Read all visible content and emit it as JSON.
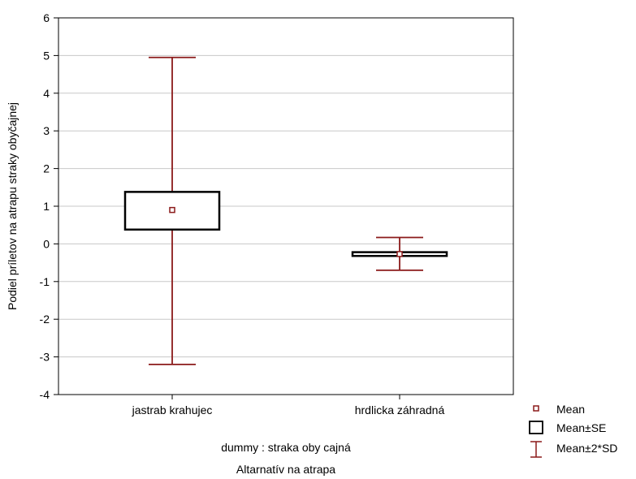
{
  "chart_data": {
    "type": "box",
    "title": "",
    "xlabel": "Altarnatív na atrapa",
    "ylabel": "Podiel príletov na atrapu straky obyčajnej",
    "subtitle": "dummy : straka oby cajná",
    "ylim": [
      -4,
      6
    ],
    "yticks": [
      -4,
      -3,
      -2,
      -1,
      0,
      1,
      2,
      3,
      4,
      5,
      6
    ],
    "categories": [
      "jastrab krahujec",
      "hrdlicka záhradná"
    ],
    "series": [
      {
        "mean": 0.9,
        "se_low": 0.38,
        "se_high": 1.38,
        "sd2_low": -3.2,
        "sd2_high": 4.95
      },
      {
        "mean": -0.27,
        "se_low": -0.32,
        "se_high": -0.22,
        "sd2_low": -0.7,
        "sd2_high": 0.17
      }
    ],
    "grid": true,
    "legend": {
      "position": "bottom-right",
      "items": [
        {
          "symbol": "mean",
          "label": "Mean"
        },
        {
          "symbol": "box",
          "label": "Mean±SE"
        },
        {
          "symbol": "whisker",
          "label": "Mean±2*SD"
        }
      ]
    },
    "colors": {
      "mark": "#8b1a1a",
      "box": "#000000",
      "grid": "#c8c8c8",
      "axis": "#000000"
    }
  }
}
